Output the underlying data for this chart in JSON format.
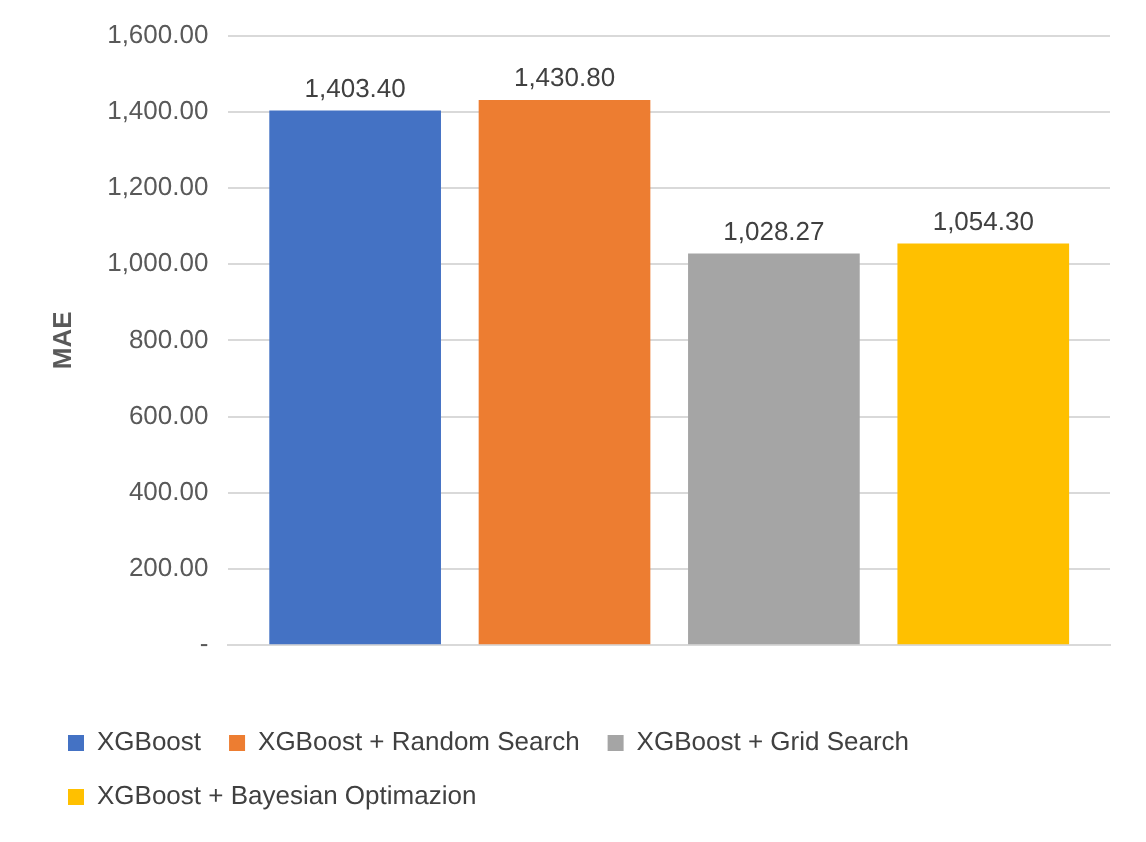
{
  "chart_data": {
    "type": "bar",
    "ylabel": "MAE",
    "categories": [
      null
    ],
    "series": [
      {
        "name": "XGBoost",
        "color": "#4472c4",
        "values": [
          1403.4
        ],
        "value_labels": [
          "1,403.40"
        ]
      },
      {
        "name": "XGBoost + Random Search",
        "color": "#ed7d31",
        "values": [
          1430.8
        ],
        "value_labels": [
          "1,430.80"
        ]
      },
      {
        "name": "XGBoost + Grid Search",
        "color": "#a5a5a5",
        "values": [
          1028.27
        ],
        "value_labels": [
          "1,028.27"
        ]
      },
      {
        "name": "XGBoost + Bayesian Optimazion",
        "color": "#ffc000",
        "values": [
          1054.3
        ],
        "value_labels": [
          "1,054.30"
        ]
      }
    ],
    "ylim": [
      0,
      1600
    ],
    "yticks": [
      {
        "value": 0,
        "label": "-"
      },
      {
        "value": 200,
        "label": "200.00"
      },
      {
        "value": 400,
        "label": "400.00"
      },
      {
        "value": 600,
        "label": "600.00"
      },
      {
        "value": 800,
        "label": "800.00"
      },
      {
        "value": 1000,
        "label": "1,000.00"
      },
      {
        "value": 1200,
        "label": "1,200.00"
      },
      {
        "value": 1400,
        "label": "1,400.00"
      },
      {
        "value": 1600,
        "label": "1,600.00"
      }
    ],
    "grid": "y",
    "legend": "bottom"
  }
}
